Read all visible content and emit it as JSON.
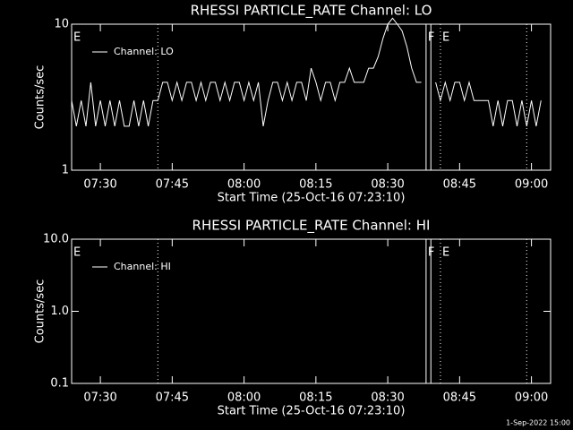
{
  "chart_data": [
    {
      "type": "line",
      "title": "RHESSI PARTICLE_RATE Channel: LO",
      "xlabel": "Start Time (25-Oct-16 07:23:10)",
      "ylabel": "Counts/sec",
      "log_y": true,
      "ylim": [
        1,
        10
      ],
      "yticks": [
        1,
        10
      ],
      "xlim": [
        "07:24",
        "09:04"
      ],
      "xticks": [
        "07:30",
        "07:45",
        "08:00",
        "08:15",
        "08:30",
        "08:45",
        "09:00"
      ],
      "x": [
        "07:24",
        "07:25",
        "07:26",
        "07:27",
        "07:28",
        "07:29",
        "07:30",
        "07:31",
        "07:32",
        "07:33",
        "07:34",
        "07:35",
        "07:36",
        "07:37",
        "07:38",
        "07:39",
        "07:40",
        "07:41",
        "07:42",
        "07:43",
        "07:44",
        "07:45",
        "07:46",
        "07:47",
        "07:48",
        "07:49",
        "07:50",
        "07:51",
        "07:52",
        "07:53",
        "07:54",
        "07:55",
        "07:56",
        "07:57",
        "07:58",
        "07:59",
        "08:00",
        "08:01",
        "08:02",
        "08:03",
        "08:04",
        "08:05",
        "08:06",
        "08:07",
        "08:08",
        "08:09",
        "08:10",
        "08:11",
        "08:12",
        "08:13",
        "08:14",
        "08:15",
        "08:16",
        "08:17",
        "08:18",
        "08:19",
        "08:20",
        "08:21",
        "08:22",
        "08:23",
        "08:24",
        "08:25",
        "08:26",
        "08:27",
        "08:28",
        "08:29",
        "08:30",
        "08:31",
        "08:32",
        "08:33",
        "08:34",
        "08:35",
        "08:36",
        "08:37",
        "08:38",
        "08:39",
        "08:40",
        "08:41",
        "08:42",
        "08:43",
        "08:44",
        "08:45",
        "08:46",
        "08:47",
        "08:48",
        "08:49",
        "08:50",
        "08:51",
        "08:52",
        "08:53",
        "08:54",
        "08:55",
        "08:56",
        "08:57",
        "08:58",
        "08:59",
        "09:00",
        "09:01",
        "09:02"
      ],
      "series": [
        {
          "name": "Channel: LO",
          "color": "#ffffff",
          "values": [
            3,
            2,
            3,
            2,
            4,
            2,
            3,
            2,
            3,
            2,
            3,
            2,
            2,
            3,
            2,
            3,
            2,
            3,
            3,
            4,
            4,
            3,
            4,
            3,
            4,
            4,
            3,
            4,
            3,
            4,
            4,
            3,
            4,
            3,
            4,
            4,
            3,
            4,
            3,
            4,
            2,
            3,
            4,
            4,
            3,
            4,
            3,
            4,
            4,
            3,
            5,
            4,
            3,
            4,
            4,
            3,
            4,
            4,
            5,
            4,
            4,
            4,
            5,
            5,
            6,
            8,
            10,
            11,
            10,
            9,
            7,
            5,
            4,
            4,
            null,
            null,
            4,
            3,
            4,
            3,
            4,
            4,
            3,
            4,
            3,
            3,
            3,
            3,
            2,
            3,
            2,
            3,
            3,
            2,
            3,
            2,
            3,
            2,
            3
          ]
        }
      ],
      "flags": [
        {
          "x": "07:42",
          "style": "dotted"
        },
        {
          "x": "08:38",
          "style": "solid"
        },
        {
          "x": "08:39",
          "style": "solid"
        },
        {
          "x": "08:41",
          "style": "dotted"
        },
        {
          "x": "08:59",
          "style": "dotted"
        }
      ],
      "annotations": [
        {
          "text": "E",
          "x": "07:24"
        },
        {
          "text": "F",
          "x": "08:38"
        },
        {
          "text": "E",
          "x": "08:41"
        }
      ]
    },
    {
      "type": "line",
      "title": "RHESSI PARTICLE_RATE Channel: HI",
      "xlabel": "Start Time (25-Oct-16 07:23:10)",
      "ylabel": "Counts/sec",
      "log_y": true,
      "ylim": [
        0.1,
        10
      ],
      "yticks": [
        0.1,
        {
          "value": 1,
          "label": "1.0"
        },
        {
          "value": 10,
          "label": "10.0"
        }
      ],
      "xlim": [
        "07:24",
        "09:04"
      ],
      "xticks": [
        "07:30",
        "07:45",
        "08:00",
        "08:15",
        "08:30",
        "08:45",
        "09:00"
      ],
      "x": [],
      "series": [
        {
          "name": "Channel: HI",
          "color": "#ffffff",
          "values": []
        }
      ],
      "flags": [
        {
          "x": "07:42",
          "style": "dotted"
        },
        {
          "x": "08:38",
          "style": "solid"
        },
        {
          "x": "08:39",
          "style": "solid"
        },
        {
          "x": "08:41",
          "style": "dotted"
        },
        {
          "x": "08:59",
          "style": "dotted"
        }
      ],
      "annotations": [
        {
          "text": "E",
          "x": "07:24"
        },
        {
          "text": "F",
          "x": "08:38"
        },
        {
          "text": "E",
          "x": "08:41"
        }
      ]
    }
  ],
  "footer": "1-Sep-2022 15:00"
}
